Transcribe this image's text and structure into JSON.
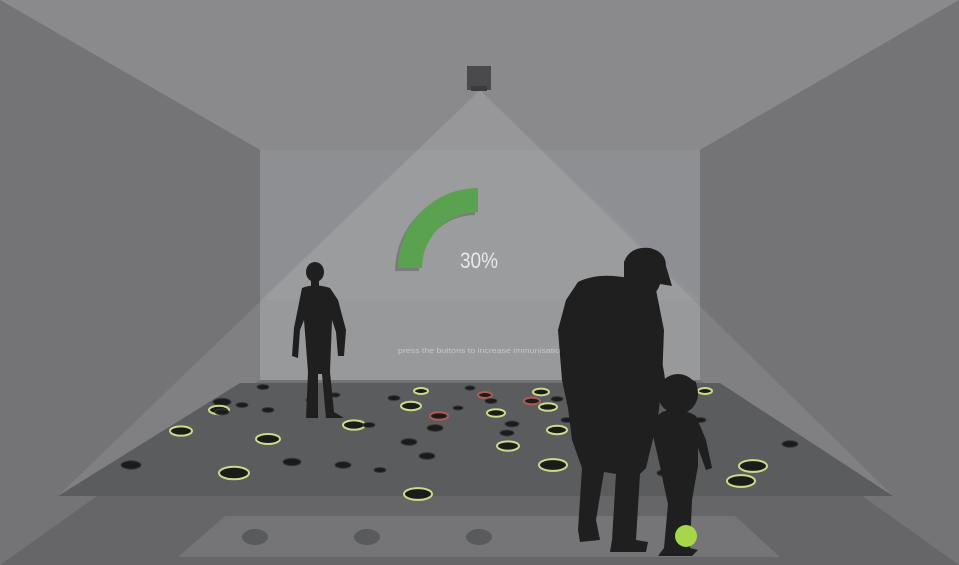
{
  "display": {
    "progress_value": 30,
    "progress_unit": "%",
    "progress_text": "30%",
    "instruction_text": "press the buttons to  increase  immunisatio",
    "progress_color": "#5aa24f"
  },
  "colors": {
    "room_back_wall": "#8d8e91",
    "room_side_wall": "#777777",
    "floor": "#4b4c4e",
    "button_ring_lit": "#c9dc8a",
    "button_ring_red": "#b05a54",
    "ball": "#a7d64a",
    "silhouette": "#1f1f1f"
  },
  "floor_buttons": {
    "count": 52
  },
  "front_pads": {
    "count": 3
  },
  "figures": [
    "standing-adult",
    "walking-adult",
    "walking-child"
  ]
}
